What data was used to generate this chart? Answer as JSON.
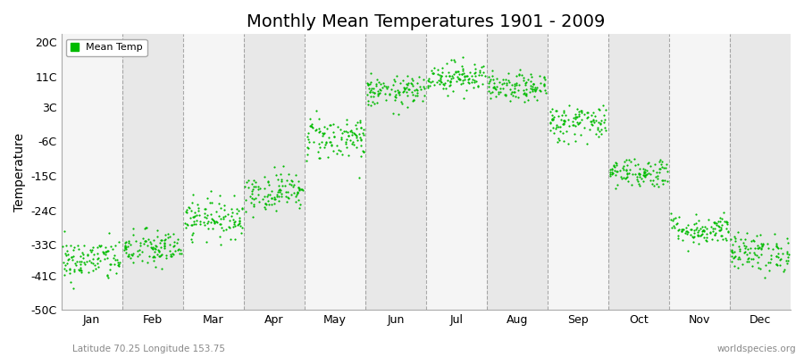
{
  "title": "Monthly Mean Temperatures 1901 - 2009",
  "ylabel": "Temperature",
  "subtitle_left": "Latitude 70.25 Longitude 153.75",
  "subtitle_right": "worldspecies.org",
  "ytick_labels": [
    "20C",
    "11C",
    "3C",
    "-6C",
    "-15C",
    "-24C",
    "-33C",
    "-41C",
    "-50C"
  ],
  "ytick_values": [
    20,
    11,
    3,
    -6,
    -15,
    -24,
    -33,
    -41,
    -50
  ],
  "ylim": [
    -50,
    22
  ],
  "months": [
    "Jan",
    "Feb",
    "Mar",
    "Apr",
    "May",
    "Jun",
    "Jul",
    "Aug",
    "Sep",
    "Oct",
    "Nov",
    "Dec"
  ],
  "month_centers": [
    0.5,
    1.5,
    2.5,
    3.5,
    4.5,
    5.5,
    6.5,
    7.5,
    8.5,
    9.5,
    10.5,
    11.5
  ],
  "month_means": [
    -37,
    -34,
    -26,
    -19,
    -5,
    7,
    11,
    8,
    -1,
    -14,
    -29,
    -35
  ],
  "month_stds": [
    2.8,
    2.5,
    2.5,
    2.5,
    3.0,
    2.0,
    2.0,
    1.8,
    2.5,
    2.0,
    2.0,
    2.5
  ],
  "n_points": 109,
  "dot_color": "#00bb00",
  "dot_size": 2.5,
  "legend_label": "Mean Temp",
  "bg_color_light": "#f5f5f5",
  "bg_color_dark": "#e8e8e8",
  "grid_color": "#777777",
  "title_fontsize": 14,
  "label_fontsize": 10,
  "tick_fontsize": 9
}
